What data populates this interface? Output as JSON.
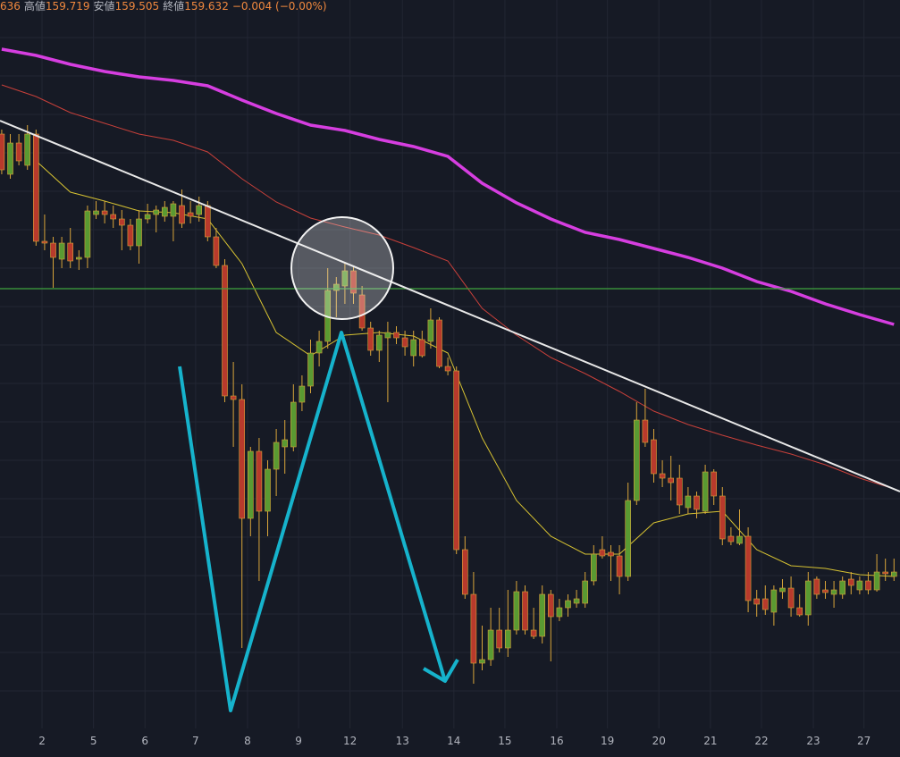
{
  "header": {
    "open_partial": "636",
    "high_label": "高値",
    "high": 159.719,
    "low_label": "安値",
    "low": 159.505,
    "close_label": "終値",
    "close": 159.632,
    "change": "−0.004 (−0.00%)"
  },
  "chart_data": {
    "type": "candlestick",
    "up_color": "#5a9a32",
    "down_color": "#b83a2c",
    "wick_color": "#d9a53a",
    "xlim": [
      -0.2,
      104.7
    ],
    "ylim": [
      158.765,
      163
    ],
    "xticks": [
      {
        "value": 4.7,
        "label": "2"
      },
      {
        "value": 10.7,
        "label": "5"
      },
      {
        "value": 16.7,
        "label": "6"
      },
      {
        "value": 22.6,
        "label": "7"
      },
      {
        "value": 28.65,
        "label": "8"
      },
      {
        "value": 34.6,
        "label": "9"
      },
      {
        "value": 40.6,
        "label": "12"
      },
      {
        "value": 46.7,
        "label": "13"
      },
      {
        "value": 52.7,
        "label": "14"
      },
      {
        "value": 58.65,
        "label": "15"
      },
      {
        "value": 64.7,
        "label": "16"
      },
      {
        "value": 70.6,
        "label": "19"
      },
      {
        "value": 76.6,
        "label": "20"
      },
      {
        "value": 82.6,
        "label": "21"
      },
      {
        "value": 88.55,
        "label": "22"
      },
      {
        "value": 94.6,
        "label": "23"
      },
      {
        "value": 100.5,
        "label": "27"
      }
    ],
    "grid": true,
    "candles": [
      [
        162.25,
        162.275,
        162.025,
        162.05
      ],
      [
        162.025,
        162.25,
        162.0,
        162.2
      ],
      [
        162.2,
        162.25,
        162.075,
        162.1
      ],
      [
        162.075,
        162.3,
        162.05,
        162.25
      ],
      [
        162.25,
        162.275,
        161.625,
        161.65
      ],
      [
        161.65,
        161.8,
        161.6,
        161.64
      ],
      [
        161.64,
        161.675,
        161.39,
        161.56
      ],
      [
        161.55,
        161.675,
        161.5,
        161.64
      ],
      [
        161.64,
        161.725,
        161.5,
        161.54
      ],
      [
        161.55,
        161.6,
        161.49,
        161.56
      ],
      [
        161.56,
        161.85,
        161.5,
        161.82
      ],
      [
        161.8,
        161.875,
        161.775,
        161.82
      ],
      [
        161.82,
        161.875,
        161.75,
        161.8
      ],
      [
        161.8,
        161.85,
        161.725,
        161.775
      ],
      [
        161.775,
        161.825,
        161.6,
        161.74
      ],
      [
        161.74,
        161.775,
        161.6,
        161.625
      ],
      [
        161.625,
        161.825,
        161.525,
        161.775
      ],
      [
        161.775,
        161.86,
        161.75,
        161.8
      ],
      [
        161.8,
        161.85,
        161.7,
        161.825
      ],
      [
        161.79,
        161.875,
        161.76,
        161.84
      ],
      [
        161.79,
        161.875,
        161.65,
        161.86
      ],
      [
        161.85,
        161.94,
        161.725,
        161.75
      ],
      [
        161.81,
        161.875,
        161.75,
        161.79
      ],
      [
        161.8,
        161.9,
        161.76,
        161.85
      ],
      [
        161.85,
        161.875,
        161.65,
        161.675
      ],
      [
        161.675,
        161.725,
        161.5,
        161.515
      ],
      [
        161.515,
        161.55,
        160.75,
        160.785
      ],
      [
        160.785,
        160.975,
        160.5,
        160.765
      ],
      [
        160.765,
        160.85,
        159.375,
        160.1
      ],
      [
        160.1,
        160.5,
        160.0,
        160.475
      ],
      [
        160.475,
        160.55,
        159.75,
        160.14
      ],
      [
        160.14,
        160.425,
        160.0,
        160.375
      ],
      [
        160.375,
        160.6,
        160.225,
        160.525
      ],
      [
        160.5,
        160.65,
        160.35,
        160.54
      ],
      [
        160.5,
        160.85,
        160.475,
        160.75
      ],
      [
        160.75,
        160.9,
        160.7,
        160.84
      ],
      [
        160.84,
        161.1,
        160.8,
        161.025
      ],
      [
        161.025,
        161.15,
        160.95,
        161.09
      ],
      [
        161.09,
        161.5,
        161.05,
        161.375
      ],
      [
        161.375,
        161.45,
        161.225,
        161.41
      ],
      [
        161.4,
        161.525,
        161.3,
        161.485
      ],
      [
        161.485,
        161.51,
        161.3,
        161.36
      ],
      [
        161.35,
        161.4,
        161.15,
        161.165
      ],
      [
        161.165,
        161.2,
        161.01,
        161.04
      ],
      [
        161.04,
        161.15,
        160.975,
        161.125
      ],
      [
        161.11,
        161.2,
        160.75,
        161.14
      ],
      [
        161.14,
        161.175,
        161.075,
        161.11
      ],
      [
        161.11,
        161.15,
        161.01,
        161.06
      ],
      [
        161.01,
        161.15,
        160.95,
        161.1
      ],
      [
        161.1,
        161.15,
        161.0,
        161.01
      ],
      [
        161.09,
        161.275,
        161.05,
        161.21
      ],
      [
        161.21,
        161.225,
        160.94,
        160.95
      ],
      [
        160.95,
        161.0,
        160.9,
        160.925
      ],
      [
        160.925,
        160.95,
        159.9,
        159.925
      ],
      [
        159.925,
        160.0,
        159.65,
        159.675
      ],
      [
        159.675,
        159.8,
        159.175,
        159.29
      ],
      [
        159.29,
        159.5,
        159.25,
        159.31
      ],
      [
        159.31,
        159.6,
        159.275,
        159.475
      ],
      [
        159.475,
        159.6,
        159.35,
        159.375
      ],
      [
        159.375,
        159.7,
        159.325,
        159.475
      ],
      [
        159.475,
        159.75,
        159.45,
        159.69
      ],
      [
        159.69,
        159.725,
        159.45,
        159.475
      ],
      [
        159.475,
        159.6,
        159.425,
        159.44
      ],
      [
        159.44,
        159.725,
        159.4,
        159.675
      ],
      [
        159.675,
        159.7,
        159.3,
        159.55
      ],
      [
        159.55,
        159.65,
        159.525,
        159.6
      ],
      [
        159.6,
        159.675,
        159.55,
        159.64
      ],
      [
        159.625,
        159.7,
        159.6,
        159.65
      ],
      [
        159.625,
        159.8,
        159.6,
        159.75
      ],
      [
        159.75,
        159.95,
        159.725,
        159.9
      ],
      [
        159.925,
        160.0,
        159.875,
        159.89
      ],
      [
        159.91,
        159.95,
        159.75,
        159.89
      ],
      [
        159.89,
        159.95,
        159.675,
        159.775
      ],
      [
        159.775,
        160.3,
        159.75,
        160.2
      ],
      [
        160.2,
        160.75,
        160.175,
        160.65
      ],
      [
        160.65,
        160.825,
        160.5,
        160.525
      ],
      [
        160.54,
        160.6,
        160.3,
        160.35
      ],
      [
        160.35,
        160.425,
        160.275,
        160.325
      ],
      [
        160.325,
        160.45,
        160.2,
        160.3
      ],
      [
        160.325,
        160.4,
        160.125,
        160.175
      ],
      [
        160.16,
        160.275,
        160.125,
        160.225
      ],
      [
        160.225,
        160.25,
        160.1,
        160.15
      ],
      [
        160.14,
        160.4,
        160.125,
        160.36
      ],
      [
        160.36,
        160.375,
        160.175,
        160.225
      ],
      [
        160.225,
        160.275,
        159.95,
        159.985
      ],
      [
        160.0,
        160.05,
        159.95,
        159.97
      ],
      [
        159.96,
        160.15,
        159.95,
        160.0
      ],
      [
        160.0,
        160.05,
        159.575,
        159.64
      ],
      [
        159.65,
        159.7,
        159.55,
        159.62
      ],
      [
        159.65,
        159.725,
        159.56,
        159.59
      ],
      [
        159.575,
        159.725,
        159.5,
        159.7
      ],
      [
        159.69,
        159.76,
        159.65,
        159.71
      ],
      [
        159.71,
        159.775,
        159.55,
        159.6
      ],
      [
        159.6,
        159.675,
        159.55,
        159.56
      ],
      [
        159.56,
        159.8,
        159.5,
        159.75
      ],
      [
        159.76,
        159.775,
        159.65,
        159.675
      ],
      [
        159.7,
        159.75,
        159.65,
        159.685
      ],
      [
        159.675,
        159.75,
        159.6,
        159.7
      ],
      [
        159.675,
        159.775,
        159.65,
        159.75
      ],
      [
        159.76,
        159.8,
        159.675,
        159.725
      ],
      [
        159.7,
        159.775,
        159.675,
        159.75
      ],
      [
        159.75,
        159.8,
        159.675,
        159.7
      ],
      [
        159.7,
        159.9,
        159.69,
        159.8
      ],
      [
        159.8,
        159.875,
        159.75,
        159.79
      ],
      [
        159.775,
        159.875,
        159.75,
        159.8
      ]
    ],
    "x": [
      0,
      4,
      8,
      12,
      16,
      20,
      24,
      28,
      32,
      36,
      40,
      44,
      48,
      52,
      56,
      60,
      64,
      68,
      72,
      76,
      80,
      84,
      88,
      92,
      96,
      100,
      104
    ],
    "series": [
      {
        "color": "#d63ee0",
        "width": 3.5,
        "values": [
          162.725,
          162.69,
          162.64,
          162.6,
          162.57,
          162.55,
          162.52,
          162.44,
          162.365,
          162.3,
          162.27,
          162.22,
          162.18,
          162.125,
          161.975,
          161.865,
          161.775,
          161.7,
          161.66,
          161.61,
          161.56,
          161.5,
          161.425,
          161.37,
          161.3,
          161.24,
          161.185
        ]
      },
      {
        "color": "#c8403a",
        "width": 1,
        "values": [
          162.525,
          162.46,
          162.37,
          162.31,
          162.25,
          162.215,
          162.15,
          162.0,
          161.87,
          161.78,
          161.73,
          161.685,
          161.615,
          161.54,
          161.275,
          161.125,
          161.0,
          160.91,
          160.81,
          160.7,
          160.625,
          160.565,
          160.51,
          160.46,
          160.4,
          160.325,
          160.265
        ]
      },
      {
        "color": "#d6c232",
        "width": 1,
        "values": [
          null,
          162.1,
          161.925,
          161.875,
          161.82,
          161.81,
          161.775,
          161.525,
          161.14,
          161.01,
          161.125,
          161.14,
          161.12,
          161.025,
          160.55,
          160.2,
          160.0,
          159.9,
          159.9,
          160.075,
          160.125,
          160.14,
          159.925,
          159.835,
          159.82,
          159.785,
          159.775
        ]
      }
    ]
  }
}
